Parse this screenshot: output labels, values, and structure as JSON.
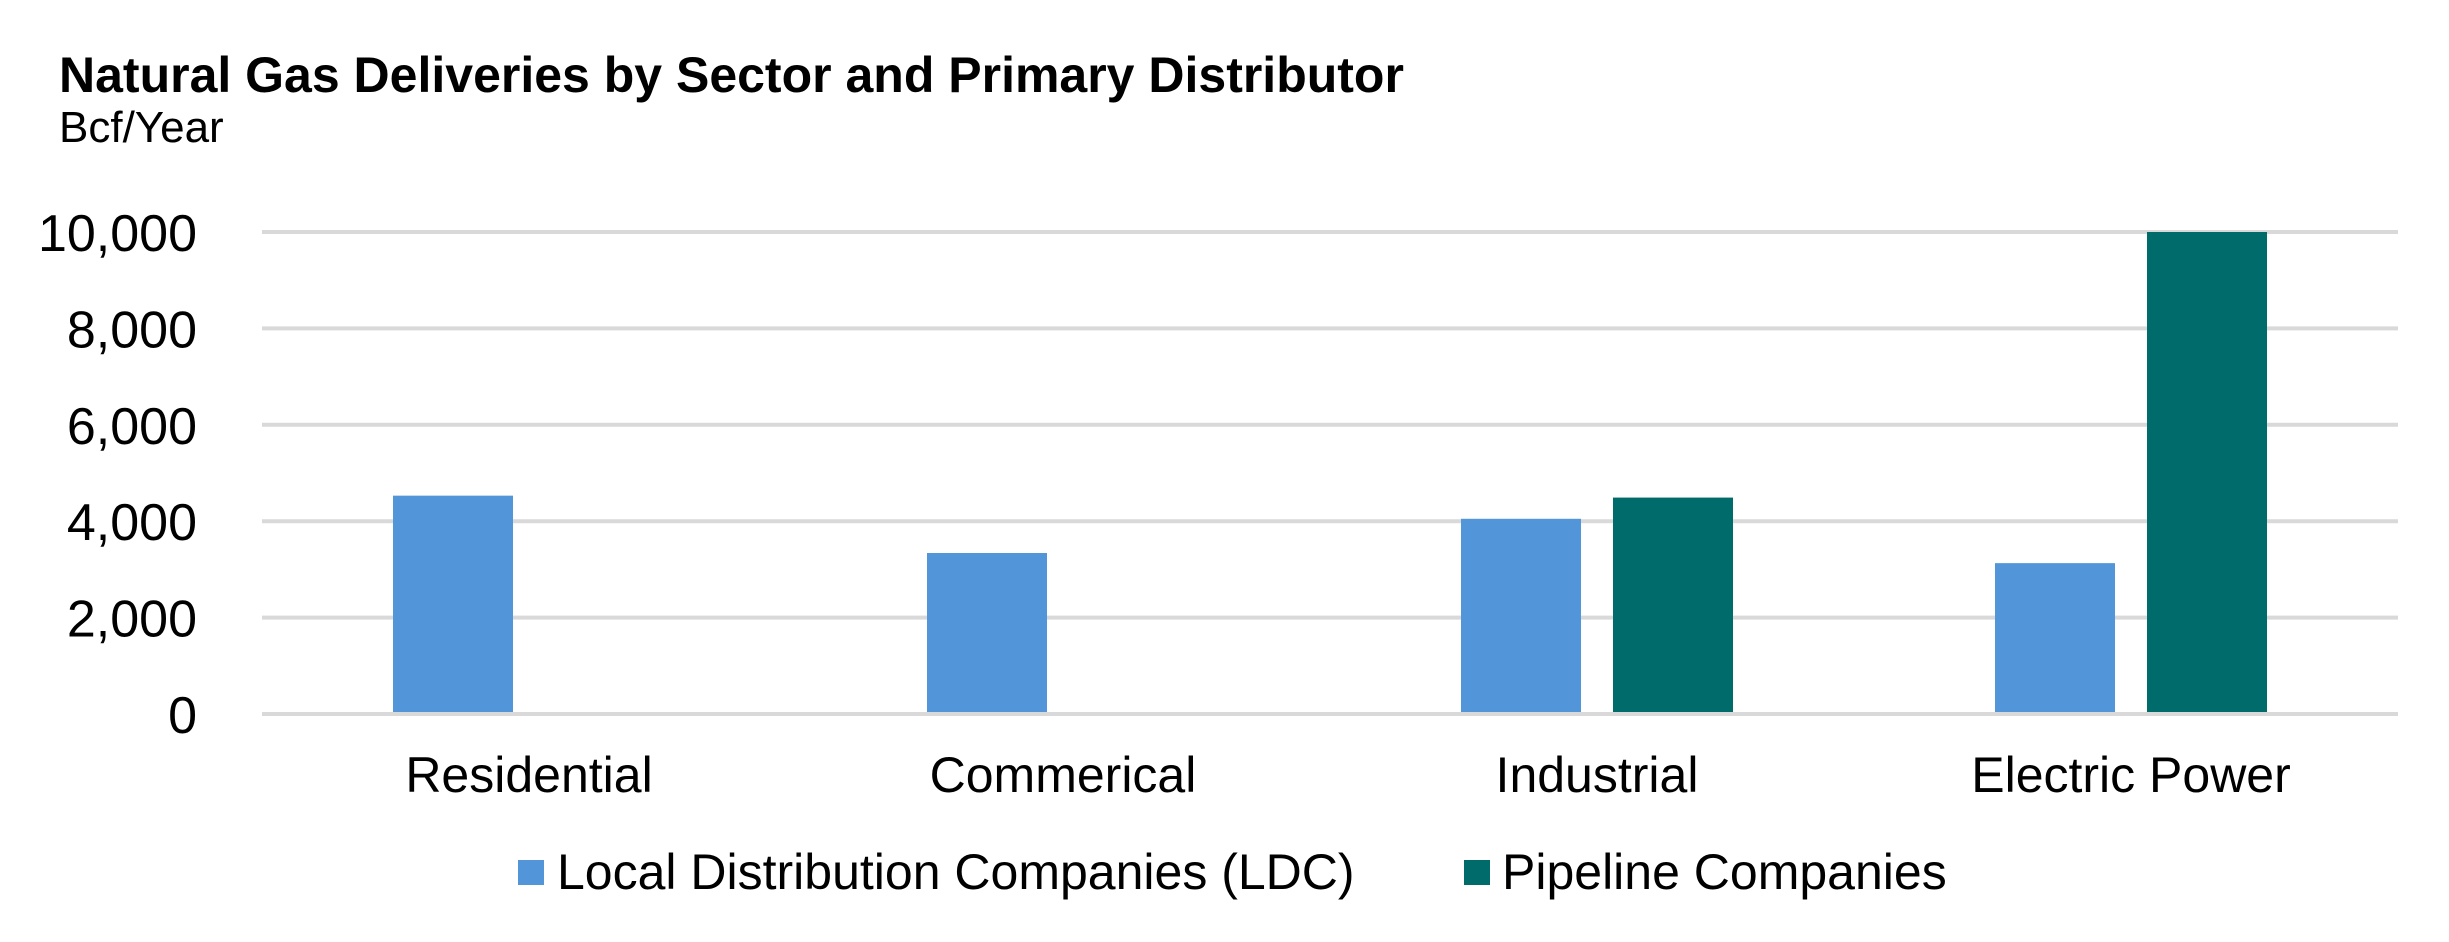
{
  "chart_data": {
    "type": "bar",
    "title": "Natural Gas Deliveries by Sector and Primary Distributor",
    "subtitle": "Bcf/Year",
    "xlabel": "",
    "ylabel": "Bcf/Year",
    "ylim": [
      0,
      10000
    ],
    "yticks": [
      0,
      2000,
      4000,
      6000,
      8000,
      10000
    ],
    "ytick_labels": [
      "0",
      "2,000",
      "4,000",
      "6,000",
      "8,000",
      "10,000"
    ],
    "grid": true,
    "legend_position": "bottom",
    "categories": [
      "Residential",
      "Commerical",
      "Industrial",
      "Electric Power"
    ],
    "series": [
      {
        "name": "Local Distribution Companies (LDC)",
        "color": "#5296d9",
        "values": [
          4530,
          3340,
          4050,
          3130
        ]
      },
      {
        "name": "Pipeline Companies",
        "color": "#006b6b",
        "values": [
          null,
          null,
          4490,
          10000
        ]
      }
    ]
  }
}
